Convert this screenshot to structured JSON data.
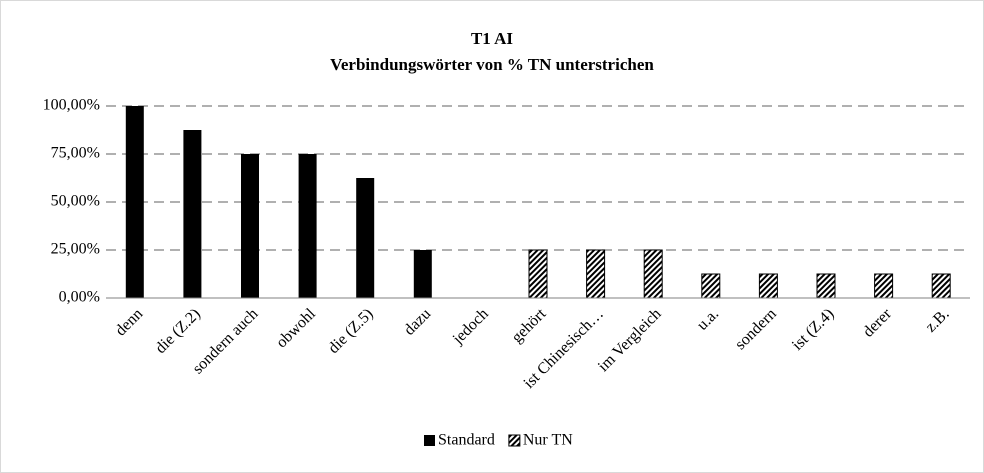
{
  "chart_data": {
    "type": "bar",
    "title": "T1 AI",
    "subtitle": "Verbindungswörter von % TN unterstrichen",
    "categories": [
      "denn",
      "die (Z.2)",
      "sondern auch",
      "obwohl",
      "die (Z.5)",
      "dazu",
      "jedoch",
      "gehört",
      "ist Chinesisch…",
      "im Vergleich",
      "u.a.",
      "sondern",
      "ist (Z.4)",
      "derer",
      "z.B."
    ],
    "series": [
      {
        "name": "Standard",
        "color": "#000000",
        "values": [
          100,
          87.5,
          75,
          75,
          62.5,
          25,
          0,
          null,
          null,
          null,
          null,
          null,
          null,
          null,
          null
        ]
      },
      {
        "name": "Nur TN",
        "color": "#000000",
        "pattern": "diagonal-hatch",
        "values": [
          null,
          null,
          null,
          null,
          null,
          null,
          null,
          25,
          25,
          25,
          12.5,
          12.5,
          12.5,
          12.5,
          12.5
        ]
      }
    ],
    "ylim": [
      0,
      100
    ],
    "yticks": [
      {
        "value": 0,
        "label": "0,00%"
      },
      {
        "value": 25,
        "label": "25,00%"
      },
      {
        "value": 50,
        "label": "50,00%"
      },
      {
        "value": 75,
        "label": "75,00%"
      },
      {
        "value": 100,
        "label": "100,00%"
      }
    ],
    "grid": true,
    "legend": "bottom"
  }
}
